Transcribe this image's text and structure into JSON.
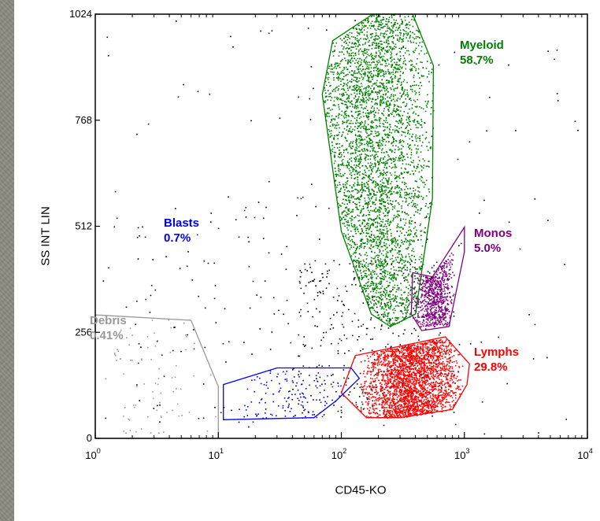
{
  "chart_data": {
    "type": "scatter",
    "xlabel": "CD45-KO",
    "ylabel": "SS INT LIN",
    "xscale": "log",
    "xlim": [
      1,
      10000
    ],
    "ylim": [
      0,
      1024
    ],
    "x_ticks": [
      {
        "value": 1,
        "base": "10",
        "exp": "0"
      },
      {
        "value": 10,
        "base": "10",
        "exp": "1"
      },
      {
        "value": 100,
        "base": "10",
        "exp": "2"
      },
      {
        "value": 1000,
        "base": "10",
        "exp": "3"
      },
      {
        "value": 10000,
        "base": "10",
        "exp": "4"
      }
    ],
    "y_ticks": [
      {
        "value": 0,
        "label": "0"
      },
      {
        "value": 256,
        "label": "256"
      },
      {
        "value": 512,
        "label": "512"
      },
      {
        "value": 768,
        "label": "768"
      },
      {
        "value": 1024,
        "label": "1024"
      }
    ],
    "gates": [
      {
        "name": "Myeloid",
        "percent": "58.7%",
        "color": "#008000",
        "polygon": [
          [
            180,
            1024
          ],
          [
            380,
            1024
          ],
          [
            560,
            900
          ],
          [
            550,
            580
          ],
          [
            400,
            300
          ],
          [
            250,
            270
          ],
          [
            175,
            300
          ],
          [
            100,
            500
          ],
          [
            70,
            830
          ],
          [
            85,
            960
          ]
        ],
        "spread": [
          30,
          1000,
          90,
          1024
        ]
      },
      {
        "name": "Monos",
        "percent": "5.0%",
        "color": "#800080",
        "polygon": [
          [
            550,
            390
          ],
          [
            1000,
            510
          ],
          [
            1000,
            450
          ],
          [
            750,
            270
          ],
          [
            450,
            260
          ],
          [
            370,
            300
          ],
          [
            380,
            400
          ]
        ],
        "spread": [
          380,
          850,
          270,
          450
        ]
      },
      {
        "name": "Lymphs",
        "percent": "29.8%",
        "color": "#ff0000",
        "polygon": [
          [
            130,
            200
          ],
          [
            700,
            245
          ],
          [
            1100,
            180
          ],
          [
            1050,
            130
          ],
          [
            800,
            70
          ],
          [
            300,
            50
          ],
          [
            160,
            50
          ],
          [
            100,
            110
          ]
        ],
        "spread": [
          140,
          1000,
          50,
          240
        ]
      },
      {
        "name": "Blasts",
        "percent": "0.7%",
        "color": "#0000ff",
        "polygon": [
          [
            30,
            170
          ],
          [
            120,
            170
          ],
          [
            140,
            145
          ],
          [
            90,
            90
          ],
          [
            60,
            50
          ],
          [
            11,
            45
          ],
          [
            11,
            130
          ]
        ],
        "spread": [
          11,
          130,
          50,
          170
        ]
      },
      {
        "name": "Debris",
        "percent": "0.41%",
        "color": "#999999",
        "polygon": [
          [
            1,
            298
          ],
          [
            6,
            285
          ],
          [
            10,
            125
          ],
          [
            10,
            0
          ],
          [
            1,
            0
          ]
        ],
        "spread": [
          1,
          9.5,
          5,
          290
        ]
      }
    ]
  }
}
